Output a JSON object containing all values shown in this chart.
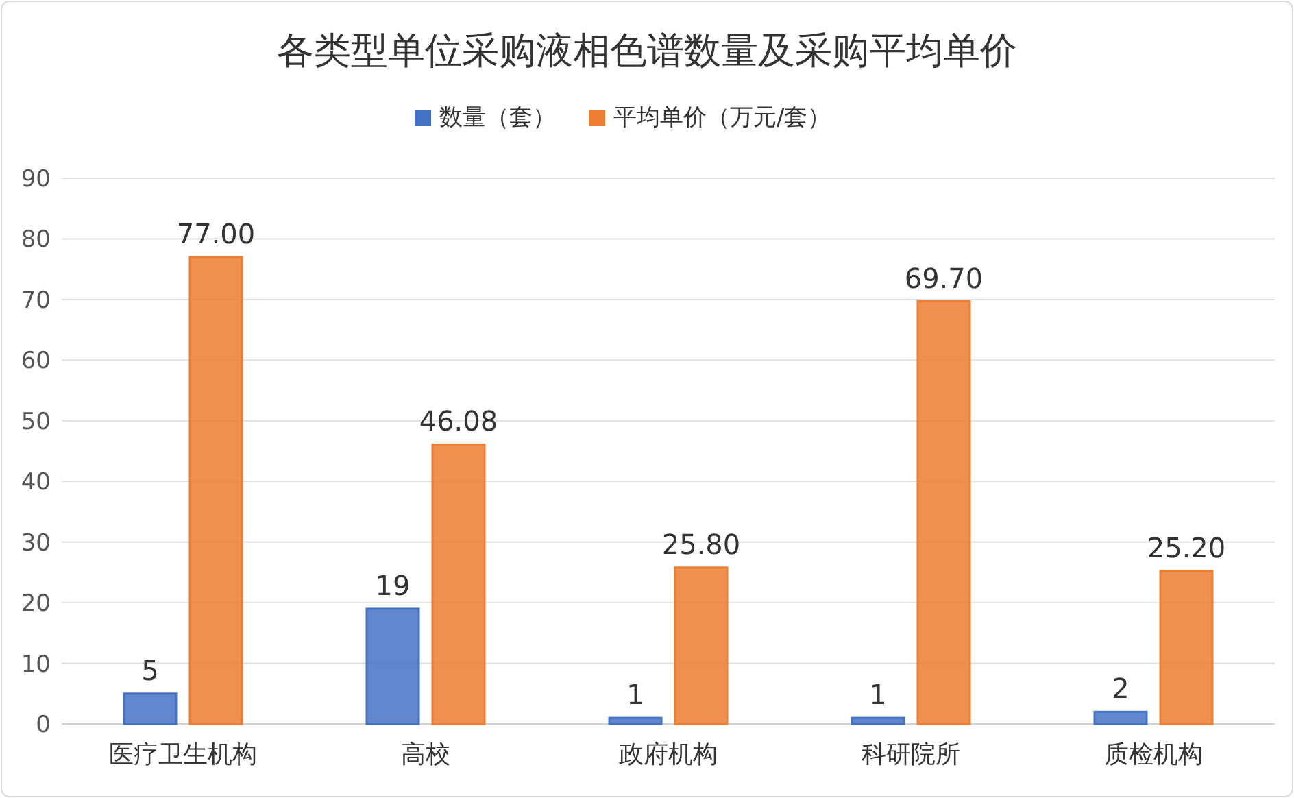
{
  "chart_data": {
    "type": "bar",
    "title": "各类型单位采购液相色谱数量及采购平均单价",
    "categories": [
      "医疗卫生机构",
      "高校",
      "政府机构",
      "科研院所",
      "质检机构"
    ],
    "series": [
      {
        "name": "数量（套）",
        "color": "#4472c4",
        "values": [
          5,
          19,
          1,
          1,
          2
        ]
      },
      {
        "name": "平均单价（万元/套）",
        "color": "#ed7d31",
        "values": [
          77.0,
          46.08,
          25.8,
          69.7,
          25.2
        ]
      }
    ],
    "value_labels": [
      [
        "5",
        "19",
        "1",
        "1",
        "2"
      ],
      [
        "77.00",
        "46.08",
        "25.80",
        "69.70",
        "25.20"
      ]
    ],
    "ylim": [
      0,
      90
    ],
    "yticks": [
      0,
      10,
      20,
      30,
      40,
      50,
      60,
      70,
      80,
      90
    ],
    "grid": "y",
    "legend": "top"
  }
}
